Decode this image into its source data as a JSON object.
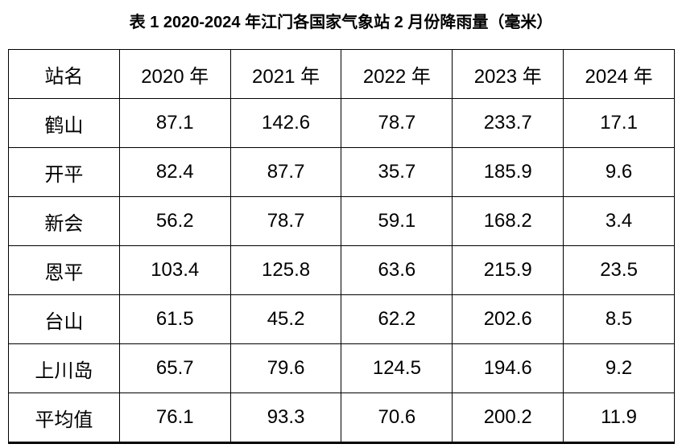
{
  "page": {
    "title": "表 1 2020-2024 年江门各国家气象站 2 月份降雨量（毫米）"
  },
  "table": {
    "headers": [
      "站名",
      "2020 年",
      "2021 年",
      "2022 年",
      "2023 年",
      "2024 年"
    ],
    "rows": [
      [
        "鹤山",
        "87.1",
        "142.6",
        "78.7",
        "233.7",
        "17.1"
      ],
      [
        "开平",
        "82.4",
        "87.7",
        "35.7",
        "185.9",
        "9.6"
      ],
      [
        "新会",
        "56.2",
        "78.7",
        "59.1",
        "168.2",
        "3.4"
      ],
      [
        "恩平",
        "103.4",
        "125.8",
        "63.6",
        "215.9",
        "23.5"
      ],
      [
        "台山",
        "61.5",
        "45.2",
        "62.2",
        "202.6",
        "8.5"
      ],
      [
        "上川岛",
        "65.7",
        "79.6",
        "124.5",
        "194.6",
        "9.2"
      ],
      [
        "平均值",
        "76.1",
        "93.3",
        "70.6",
        "200.2",
        "11.9"
      ]
    ]
  },
  "chart_data": {
    "type": "table",
    "title": "表 1 2020-2024 年江门各国家气象站 2 月份降雨量（毫米）",
    "unit": "毫米",
    "columns": [
      "站名",
      "2020年",
      "2021年",
      "2022年",
      "2023年",
      "2024年"
    ],
    "categories": [
      "鹤山",
      "开平",
      "新会",
      "恩平",
      "台山",
      "上川岛",
      "平均值"
    ],
    "series": [
      {
        "name": "2020年",
        "values": [
          87.1,
          82.4,
          56.2,
          103.4,
          61.5,
          65.7,
          76.1
        ]
      },
      {
        "name": "2021年",
        "values": [
          142.6,
          87.7,
          78.7,
          125.8,
          45.2,
          79.6,
          93.3
        ]
      },
      {
        "name": "2022年",
        "values": [
          78.7,
          35.7,
          59.1,
          63.6,
          62.2,
          124.5,
          70.6
        ]
      },
      {
        "name": "2023年",
        "values": [
          233.7,
          185.9,
          168.2,
          215.9,
          202.6,
          194.6,
          200.2
        ]
      },
      {
        "name": "2024年",
        "values": [
          17.1,
          9.6,
          3.4,
          23.5,
          8.5,
          9.2,
          11.9
        ]
      }
    ]
  },
  "colors": {
    "background": "#ffffff",
    "text": "#000000",
    "border": "#000000"
  }
}
